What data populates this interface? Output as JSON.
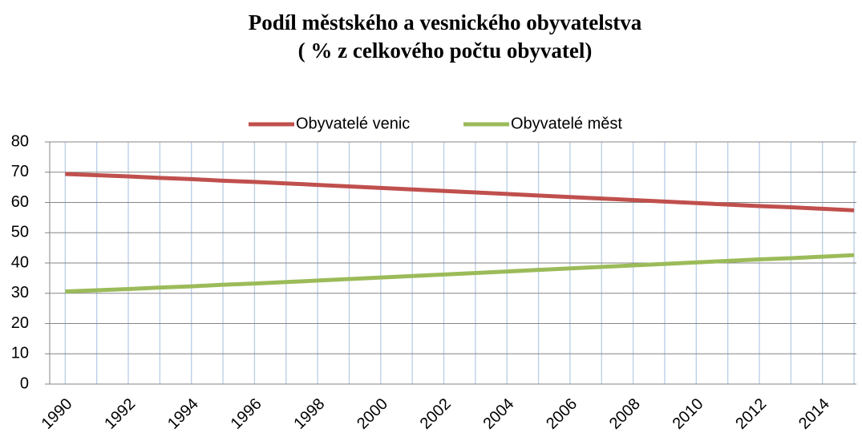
{
  "chart_data": {
    "type": "line",
    "title": [
      "Podíl městského a vesnického obyvatelstva",
      "( % z celkového počtu obyvatel)"
    ],
    "categories": [
      1990,
      null,
      1992,
      null,
      1994,
      null,
      1996,
      null,
      1998,
      null,
      2000,
      null,
      2002,
      null,
      2004,
      null,
      2006,
      null,
      2008,
      null,
      2010,
      null,
      2012,
      null,
      2014,
      null
    ],
    "series": [
      {
        "name": "Obyvatelé venic",
        "color": "#c0504d",
        "values": [
          69.4,
          69.0,
          68.6,
          68.1,
          67.7,
          67.2,
          66.8,
          66.3,
          65.8,
          65.3,
          64.8,
          64.3,
          63.8,
          63.3,
          62.8,
          62.3,
          61.8,
          61.3,
          60.8,
          60.3,
          59.8,
          59.3,
          58.8,
          58.4,
          57.9,
          57.4
        ]
      },
      {
        "name": "Obyvatelé měst",
        "color": "#9bbb59",
        "values": [
          30.6,
          31.0,
          31.4,
          31.9,
          32.3,
          32.8,
          33.2,
          33.7,
          34.2,
          34.7,
          35.2,
          35.7,
          36.2,
          36.7,
          37.2,
          37.7,
          38.2,
          38.7,
          39.2,
          39.7,
          40.2,
          40.7,
          41.2,
          41.6,
          42.1,
          42.6
        ]
      }
    ],
    "ylim": [
      0,
      80
    ],
    "yticks": [
      0,
      10,
      20,
      30,
      40,
      50,
      60,
      70,
      80
    ],
    "grid": true,
    "legend": "top"
  }
}
